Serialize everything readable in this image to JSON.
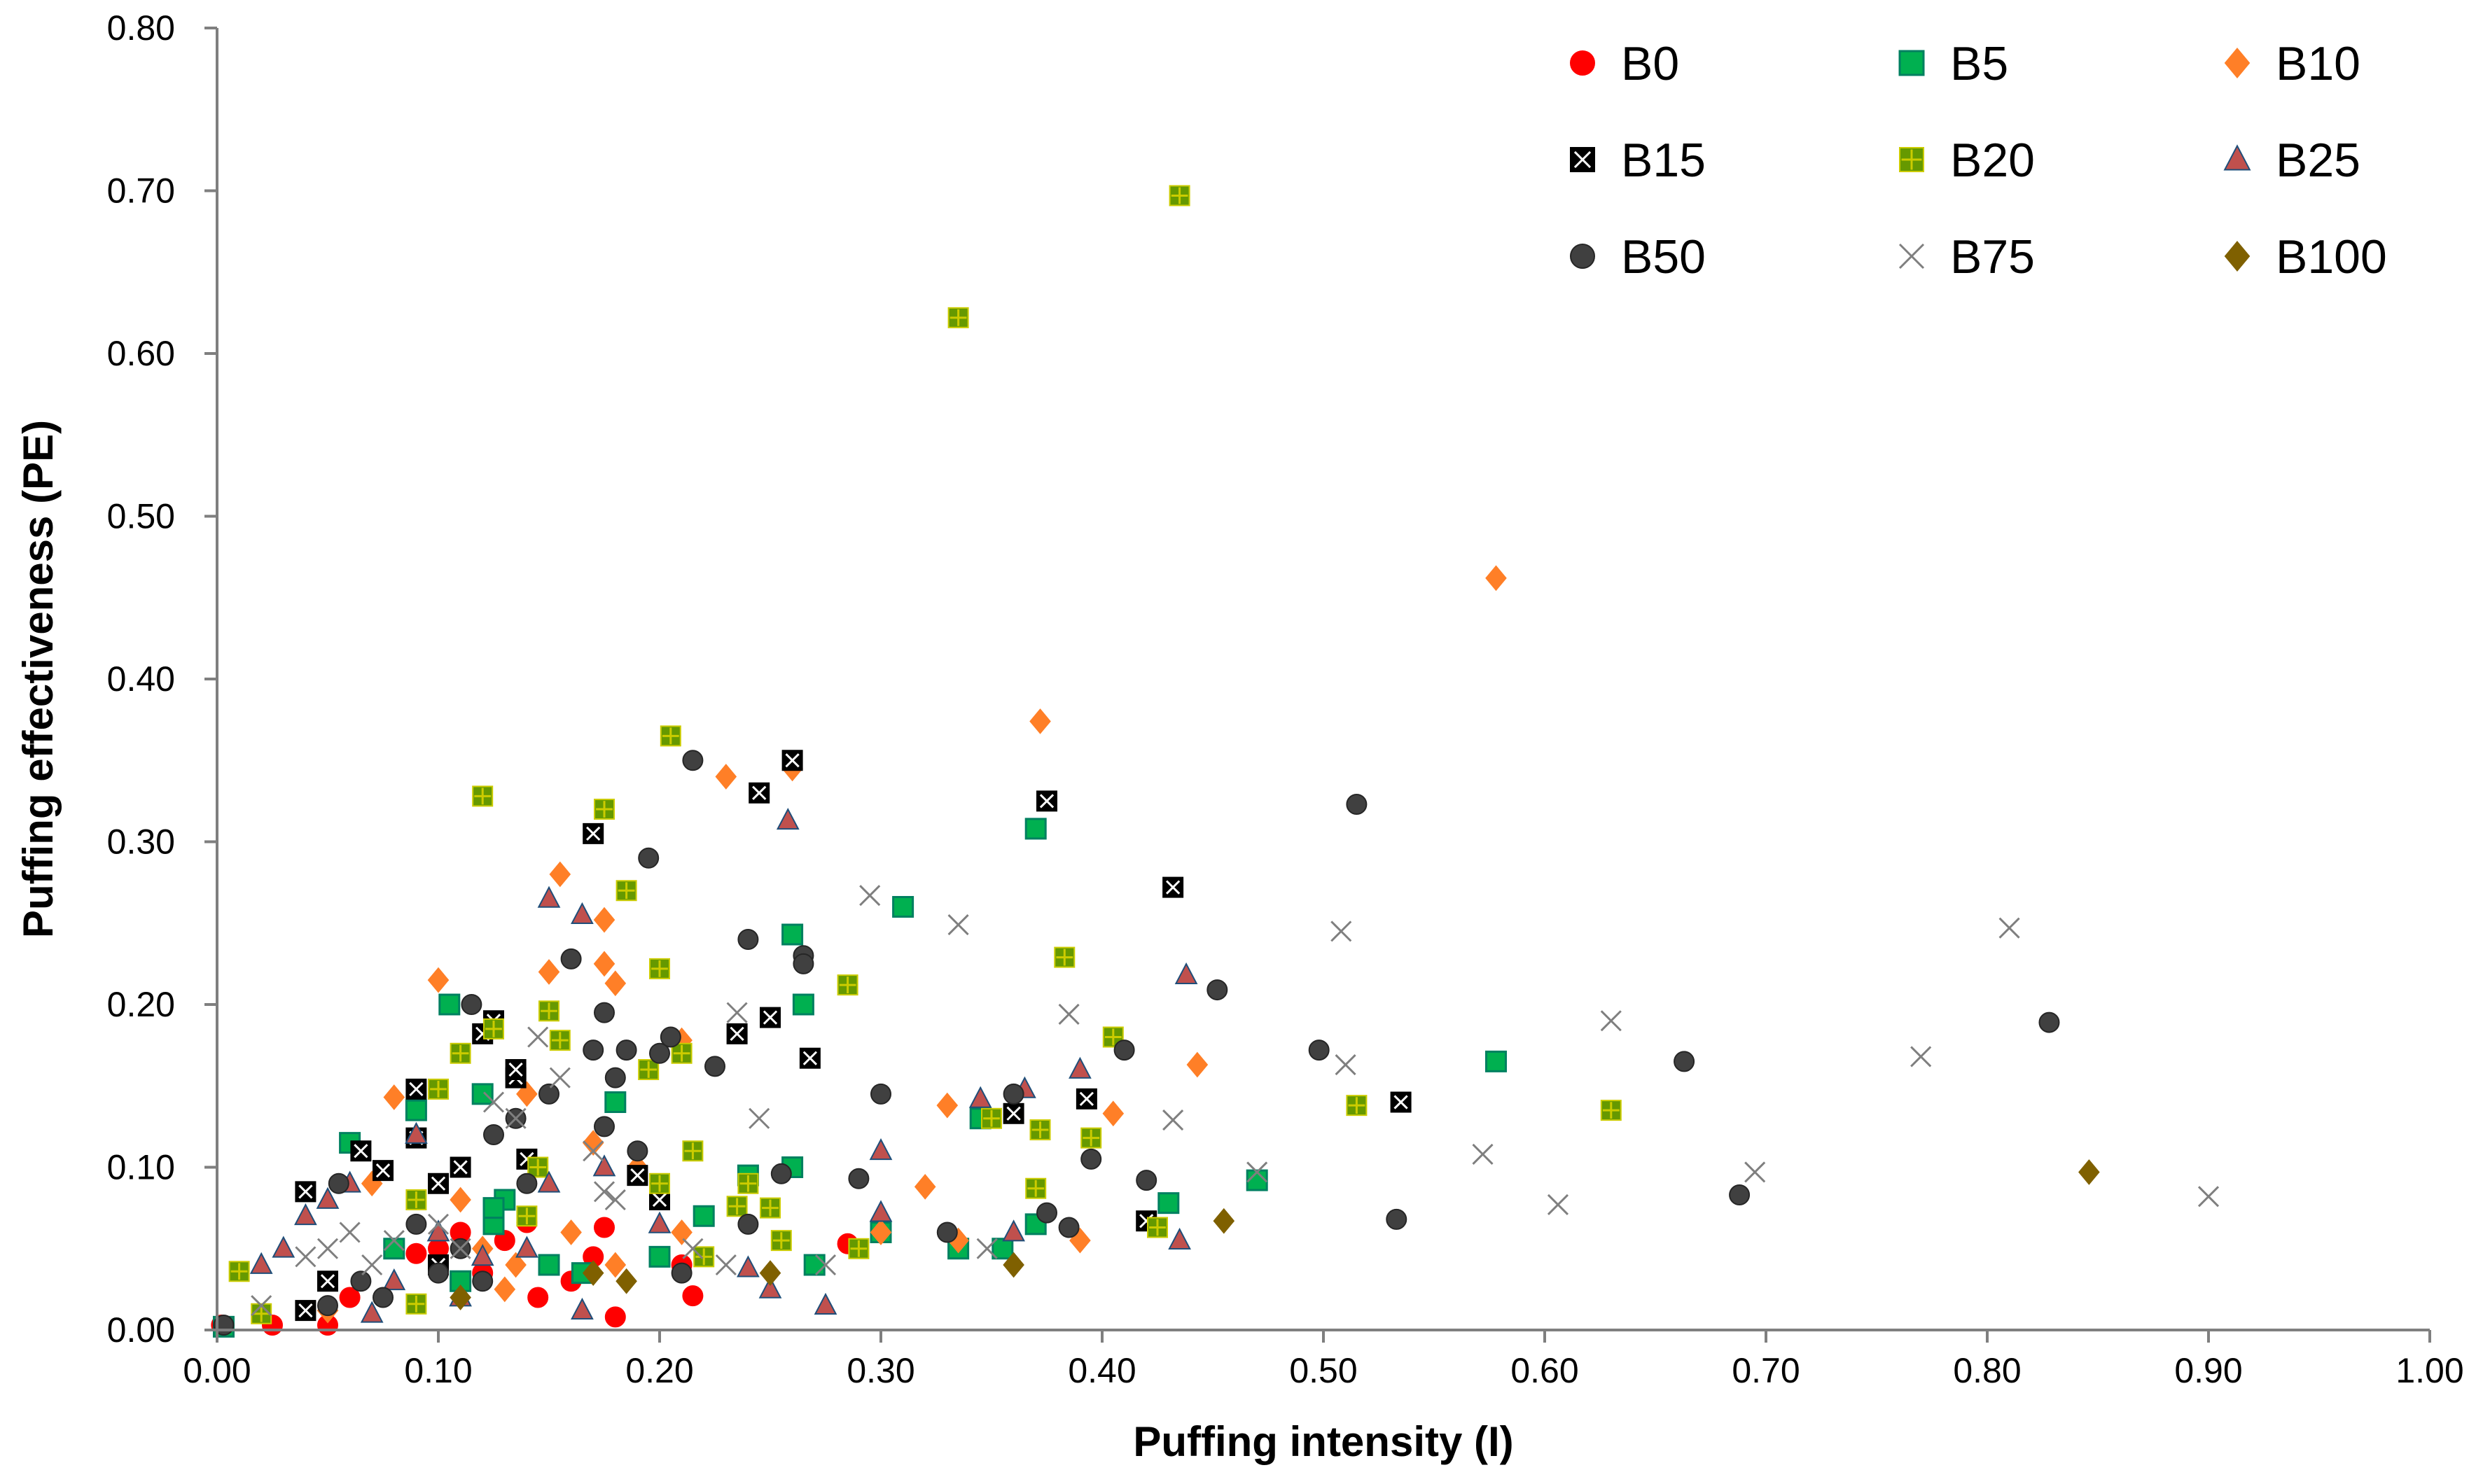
{
  "chart_data": {
    "type": "scatter",
    "title": "",
    "xlabel": "Puffing intensity (I)",
    "ylabel": "Puffing effectiveness (PE)",
    "xlim": [
      0,
      1.0
    ],
    "ylim": [
      0,
      0.8
    ],
    "xticks": [
      "0.00",
      "0.10",
      "0.20",
      "0.30",
      "0.40",
      "0.50",
      "0.60",
      "0.70",
      "0.80",
      "0.90",
      "1.00"
    ],
    "yticks": [
      "0.00",
      "0.10",
      "0.20",
      "0.30",
      "0.40",
      "0.50",
      "0.60",
      "0.70",
      "0.80"
    ],
    "grid": false,
    "legend_position": "top-right",
    "series": [
      {
        "name": "B0",
        "marker": "circle",
        "color": "#ff0000",
        "outline": "#ff0000",
        "points": [
          [
            0.002,
            0.003
          ],
          [
            0.025,
            0.003
          ],
          [
            0.05,
            0.003
          ],
          [
            0.09,
            0.047
          ],
          [
            0.1,
            0.05
          ],
          [
            0.11,
            0.06
          ],
          [
            0.13,
            0.055
          ],
          [
            0.145,
            0.02
          ],
          [
            0.16,
            0.03
          ],
          [
            0.17,
            0.045
          ],
          [
            0.175,
            0.063
          ],
          [
            0.18,
            0.008
          ],
          [
            0.21,
            0.04
          ],
          [
            0.215,
            0.021
          ],
          [
            0.285,
            0.053
          ],
          [
            0.27,
            0.04
          ],
          [
            0.06,
            0.02
          ],
          [
            0.14,
            0.066
          ],
          [
            0.12,
            0.035
          ]
        ]
      },
      {
        "name": "B5",
        "marker": "square",
        "color": "#00b050",
        "outline": "#008060",
        "points": [
          [
            0.003,
            0.002
          ],
          [
            0.06,
            0.115
          ],
          [
            0.08,
            0.05
          ],
          [
            0.09,
            0.135
          ],
          [
            0.105,
            0.2
          ],
          [
            0.12,
            0.145
          ],
          [
            0.125,
            0.065
          ],
          [
            0.13,
            0.08
          ],
          [
            0.15,
            0.04
          ],
          [
            0.165,
            0.035
          ],
          [
            0.18,
            0.14
          ],
          [
            0.2,
            0.045
          ],
          [
            0.22,
            0.07
          ],
          [
            0.24,
            0.095
          ],
          [
            0.26,
            0.1
          ],
          [
            0.26,
            0.243
          ],
          [
            0.265,
            0.2
          ],
          [
            0.27,
            0.04
          ],
          [
            0.3,
            0.06
          ],
          [
            0.31,
            0.26
          ],
          [
            0.335,
            0.05
          ],
          [
            0.345,
            0.13
          ],
          [
            0.355,
            0.05
          ],
          [
            0.37,
            0.065
          ],
          [
            0.37,
            0.308
          ],
          [
            0.43,
            0.078
          ],
          [
            0.47,
            0.092
          ],
          [
            0.578,
            0.165
          ],
          [
            0.11,
            0.03
          ],
          [
            0.125,
            0.075
          ]
        ]
      },
      {
        "name": "B10",
        "marker": "diamond",
        "color": "#ff7f27",
        "outline": "#ff7f27",
        "points": [
          [
            0.05,
            0.012
          ],
          [
            0.07,
            0.09
          ],
          [
            0.08,
            0.143
          ],
          [
            0.1,
            0.215
          ],
          [
            0.11,
            0.08
          ],
          [
            0.12,
            0.05
          ],
          [
            0.13,
            0.025
          ],
          [
            0.135,
            0.04
          ],
          [
            0.14,
            0.145
          ],
          [
            0.15,
            0.22
          ],
          [
            0.155,
            0.28
          ],
          [
            0.16,
            0.06
          ],
          [
            0.17,
            0.115
          ],
          [
            0.175,
            0.252
          ],
          [
            0.175,
            0.225
          ],
          [
            0.18,
            0.213
          ],
          [
            0.18,
            0.04
          ],
          [
            0.21,
            0.178
          ],
          [
            0.23,
            0.34
          ],
          [
            0.26,
            0.345
          ],
          [
            0.3,
            0.06
          ],
          [
            0.32,
            0.088
          ],
          [
            0.33,
            0.138
          ],
          [
            0.335,
            0.055
          ],
          [
            0.372,
            0.374
          ],
          [
            0.405,
            0.133
          ],
          [
            0.39,
            0.055
          ],
          [
            0.443,
            0.163
          ],
          [
            0.578,
            0.462
          ],
          [
            0.21,
            0.06
          ],
          [
            0.19,
            0.1
          ]
        ]
      },
      {
        "name": "B15",
        "marker": "square-x",
        "color": "#000000",
        "outline": "#000000",
        "points": [
          [
            0.04,
            0.085
          ],
          [
            0.04,
            0.012
          ],
          [
            0.05,
            0.03
          ],
          [
            0.065,
            0.11
          ],
          [
            0.075,
            0.098
          ],
          [
            0.09,
            0.148
          ],
          [
            0.09,
            0.118
          ],
          [
            0.1,
            0.09
          ],
          [
            0.1,
            0.04
          ],
          [
            0.11,
            0.1
          ],
          [
            0.12,
            0.182
          ],
          [
            0.125,
            0.19
          ],
          [
            0.135,
            0.155
          ],
          [
            0.135,
            0.16
          ],
          [
            0.17,
            0.305
          ],
          [
            0.19,
            0.095
          ],
          [
            0.2,
            0.08
          ],
          [
            0.235,
            0.182
          ],
          [
            0.245,
            0.33
          ],
          [
            0.25,
            0.192
          ],
          [
            0.26,
            0.35
          ],
          [
            0.268,
            0.167
          ],
          [
            0.36,
            0.133
          ],
          [
            0.375,
            0.325
          ],
          [
            0.393,
            0.142
          ],
          [
            0.42,
            0.067
          ],
          [
            0.432,
            0.272
          ],
          [
            0.535,
            0.14
          ],
          [
            0.14,
            0.105
          ]
        ]
      },
      {
        "name": "B20",
        "marker": "square-plus",
        "color": "#669900",
        "outline": "#cccc00",
        "points": [
          [
            0.01,
            0.036
          ],
          [
            0.02,
            0.01
          ],
          [
            0.09,
            0.08
          ],
          [
            0.09,
            0.016
          ],
          [
            0.1,
            0.148
          ],
          [
            0.11,
            0.17
          ],
          [
            0.12,
            0.328
          ],
          [
            0.125,
            0.185
          ],
          [
            0.14,
            0.07
          ],
          [
            0.145,
            0.1
          ],
          [
            0.15,
            0.196
          ],
          [
            0.155,
            0.178
          ],
          [
            0.175,
            0.32
          ],
          [
            0.185,
            0.27
          ],
          [
            0.195,
            0.16
          ],
          [
            0.2,
            0.09
          ],
          [
            0.2,
            0.222
          ],
          [
            0.205,
            0.365
          ],
          [
            0.21,
            0.17
          ],
          [
            0.215,
            0.11
          ],
          [
            0.22,
            0.045
          ],
          [
            0.235,
            0.076
          ],
          [
            0.24,
            0.09
          ],
          [
            0.25,
            0.075
          ],
          [
            0.255,
            0.055
          ],
          [
            0.285,
            0.212
          ],
          [
            0.29,
            0.05
          ],
          [
            0.35,
            0.13
          ],
          [
            0.37,
            0.087
          ],
          [
            0.372,
            0.123
          ],
          [
            0.383,
            0.229
          ],
          [
            0.395,
            0.118
          ],
          [
            0.405,
            0.18
          ],
          [
            0.425,
            0.063
          ],
          [
            0.515,
            0.138
          ],
          [
            0.63,
            0.135
          ],
          [
            0.435,
            0.697
          ],
          [
            0.335,
            0.622
          ]
        ]
      },
      {
        "name": "B25",
        "marker": "triangle",
        "color": "#c0504d",
        "outline": "#1f4e79",
        "points": [
          [
            0.02,
            0.04
          ],
          [
            0.03,
            0.05
          ],
          [
            0.04,
            0.07
          ],
          [
            0.05,
            0.08
          ],
          [
            0.06,
            0.09
          ],
          [
            0.08,
            0.03
          ],
          [
            0.09,
            0.12
          ],
          [
            0.1,
            0.06
          ],
          [
            0.11,
            0.02
          ],
          [
            0.12,
            0.045
          ],
          [
            0.14,
            0.05
          ],
          [
            0.15,
            0.265
          ],
          [
            0.165,
            0.012
          ],
          [
            0.165,
            0.255
          ],
          [
            0.175,
            0.1
          ],
          [
            0.2,
            0.065
          ],
          [
            0.24,
            0.038
          ],
          [
            0.25,
            0.025
          ],
          [
            0.258,
            0.313
          ],
          [
            0.275,
            0.015
          ],
          [
            0.3,
            0.11
          ],
          [
            0.3,
            0.072
          ],
          [
            0.345,
            0.142
          ],
          [
            0.36,
            0.06
          ],
          [
            0.365,
            0.148
          ],
          [
            0.39,
            0.16
          ],
          [
            0.435,
            0.055
          ],
          [
            0.438,
            0.218
          ],
          [
            0.15,
            0.09
          ],
          [
            0.07,
            0.01
          ]
        ]
      },
      {
        "name": "B50",
        "marker": "circle",
        "color": "#404040",
        "outline": "#262626",
        "points": [
          [
            0.003,
            0.003
          ],
          [
            0.05,
            0.015
          ],
          [
            0.055,
            0.09
          ],
          [
            0.065,
            0.03
          ],
          [
            0.075,
            0.02
          ],
          [
            0.09,
            0.065
          ],
          [
            0.1,
            0.035
          ],
          [
            0.11,
            0.05
          ],
          [
            0.115,
            0.2
          ],
          [
            0.12,
            0.03
          ],
          [
            0.125,
            0.12
          ],
          [
            0.135,
            0.13
          ],
          [
            0.14,
            0.09
          ],
          [
            0.15,
            0.145
          ],
          [
            0.16,
            0.228
          ],
          [
            0.17,
            0.172
          ],
          [
            0.175,
            0.195
          ],
          [
            0.175,
            0.125
          ],
          [
            0.18,
            0.155
          ],
          [
            0.185,
            0.172
          ],
          [
            0.19,
            0.11
          ],
          [
            0.195,
            0.29
          ],
          [
            0.2,
            0.17
          ],
          [
            0.205,
            0.18
          ],
          [
            0.21,
            0.035
          ],
          [
            0.215,
            0.35
          ],
          [
            0.225,
            0.162
          ],
          [
            0.24,
            0.24
          ],
          [
            0.24,
            0.065
          ],
          [
            0.255,
            0.096
          ],
          [
            0.265,
            0.23
          ],
          [
            0.265,
            0.225
          ],
          [
            0.29,
            0.093
          ],
          [
            0.3,
            0.145
          ],
          [
            0.33,
            0.06
          ],
          [
            0.36,
            0.145
          ],
          [
            0.375,
            0.072
          ],
          [
            0.385,
            0.063
          ],
          [
            0.395,
            0.105
          ],
          [
            0.41,
            0.172
          ],
          [
            0.42,
            0.092
          ],
          [
            0.452,
            0.209
          ],
          [
            0.498,
            0.172
          ],
          [
            0.515,
            0.323
          ],
          [
            0.533,
            0.068
          ],
          [
            0.663,
            0.165
          ],
          [
            0.688,
            0.083
          ],
          [
            0.828,
            0.189
          ]
        ]
      },
      {
        "name": "B75",
        "marker": "x",
        "color": "#7f7f7f",
        "outline": "#7f7f7f",
        "points": [
          [
            0.02,
            0.015
          ],
          [
            0.04,
            0.045
          ],
          [
            0.05,
            0.05
          ],
          [
            0.06,
            0.06
          ],
          [
            0.07,
            0.04
          ],
          [
            0.08,
            0.055
          ],
          [
            0.1,
            0.065
          ],
          [
            0.11,
            0.05
          ],
          [
            0.125,
            0.14
          ],
          [
            0.135,
            0.13
          ],
          [
            0.145,
            0.18
          ],
          [
            0.155,
            0.155
          ],
          [
            0.17,
            0.11
          ],
          [
            0.175,
            0.085
          ],
          [
            0.18,
            0.08
          ],
          [
            0.215,
            0.05
          ],
          [
            0.23,
            0.04
          ],
          [
            0.235,
            0.195
          ],
          [
            0.245,
            0.13
          ],
          [
            0.275,
            0.04
          ],
          [
            0.295,
            0.267
          ],
          [
            0.335,
            0.249
          ],
          [
            0.348,
            0.05
          ],
          [
            0.385,
            0.194
          ],
          [
            0.432,
            0.129
          ],
          [
            0.47,
            0.097
          ],
          [
            0.51,
            0.163
          ],
          [
            0.508,
            0.245
          ],
          [
            0.572,
            0.108
          ],
          [
            0.606,
            0.077
          ],
          [
            0.63,
            0.19
          ],
          [
            0.695,
            0.097
          ],
          [
            0.77,
            0.168
          ],
          [
            0.81,
            0.247
          ],
          [
            0.9,
            0.082
          ]
        ]
      },
      {
        "name": "B100",
        "marker": "diamond",
        "color": "#7f6000",
        "outline": "#7f6000",
        "points": [
          [
            0.11,
            0.02
          ],
          [
            0.17,
            0.035
          ],
          [
            0.185,
            0.03
          ],
          [
            0.25,
            0.035
          ],
          [
            0.36,
            0.04
          ],
          [
            0.455,
            0.067
          ],
          [
            0.846,
            0.097
          ]
        ]
      }
    ]
  }
}
